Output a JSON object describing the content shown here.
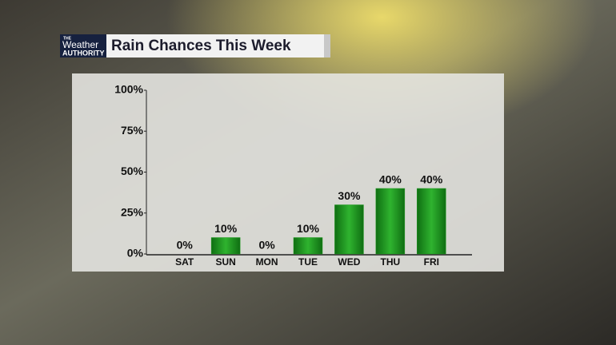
{
  "chart_data": {
    "type": "bar",
    "brand": {
      "small": "THE",
      "name": "Weather",
      "tagline": "AUTHORITY"
    },
    "title": "Rain Chances This Week",
    "categories": [
      "SAT",
      "SUN",
      "MON",
      "TUE",
      "WED",
      "THU",
      "FRI"
    ],
    "values": [
      0,
      10,
      0,
      10,
      30,
      40,
      40
    ],
    "value_labels": [
      "0%",
      "10%",
      "0%",
      "10%",
      "30%",
      "40%",
      "40%"
    ],
    "color": "#1f9a1f",
    "ylim": [
      0,
      100
    ],
    "yticks": [
      {
        "value": 0,
        "label": "0%"
      },
      {
        "value": 25,
        "label": "25%"
      },
      {
        "value": 50,
        "label": "50%"
      },
      {
        "value": 75,
        "label": "75%"
      },
      {
        "value": 100,
        "label": "100%"
      }
    ],
    "grid": false
  }
}
